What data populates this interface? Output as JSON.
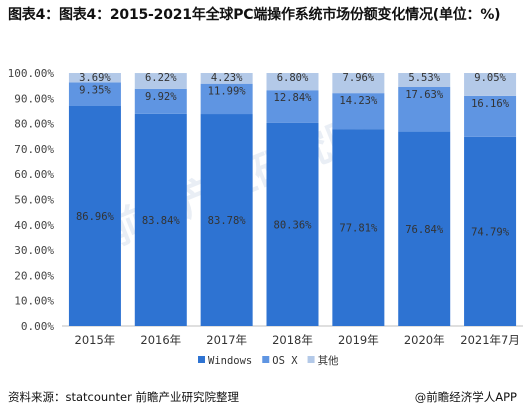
{
  "title": "图表4：图表4：2015-2021年全球PC端操作系统市场份额变化情况(单位：%)",
  "source": "资料来源：statcounter 前瞻产业研究院整理",
  "brand": "@前瞻经济学人APP",
  "watermark": "前瞻产业研究院",
  "chart_data": {
    "type": "bar",
    "stacked": true,
    "categories": [
      "2015年",
      "2016年",
      "2017年",
      "2018年",
      "2019年",
      "2020年",
      "2021年7月"
    ],
    "series": [
      {
        "name": "Windows",
        "color": "#2e73d2",
        "values": [
          86.96,
          83.84,
          83.78,
          80.36,
          77.81,
          76.84,
          74.79
        ],
        "labels": [
          "86.96%",
          "83.84%",
          "83.78%",
          "80.36%",
          "77.81%",
          "76.84%",
          "74.79%"
        ]
      },
      {
        "name": "OS X",
        "color": "#5f95e2",
        "values": [
          9.35,
          9.92,
          11.99,
          12.84,
          14.23,
          17.63,
          16.16
        ],
        "labels": [
          "9.35%",
          "9.92%",
          "11.99%",
          "12.84%",
          "14.23%",
          "17.63%",
          "16.16%"
        ]
      },
      {
        "name": "其他",
        "color": "#b3c9e8",
        "values": [
          3.69,
          6.22,
          4.23,
          6.8,
          7.96,
          5.53,
          9.05
        ],
        "labels": [
          "3.69%",
          "6.22%",
          "4.23%",
          "6.80%",
          "7.96%",
          "5.53%",
          "9.05%"
        ]
      }
    ],
    "ylim": [
      0,
      100
    ],
    "yticks": [
      "0.00%",
      "10.00%",
      "20.00%",
      "30.00%",
      "40.00%",
      "50.00%",
      "60.00%",
      "70.00%",
      "80.00%",
      "90.00%",
      "100.00%"
    ],
    "legend_position": "bottom",
    "xlabel": "",
    "ylabel": ""
  }
}
